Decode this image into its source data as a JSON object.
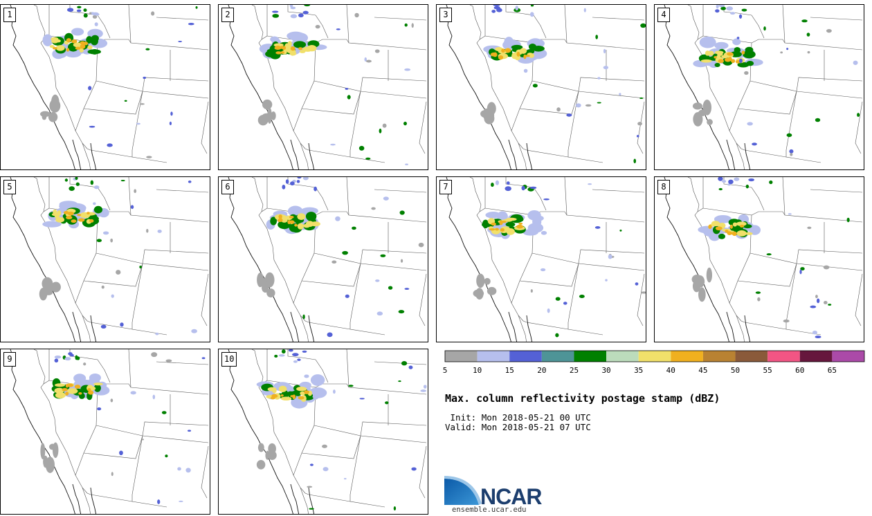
{
  "title": "Max. column reflectivity postage stamp (dBZ)",
  "init_label": " Init:",
  "init_value": "Mon 2018-05-21 00 UTC",
  "valid_label": "Valid:",
  "valid_value": "Mon 2018-05-21 07 UTC",
  "organization": "NCAR",
  "website": "ensemble.ucar.edu",
  "members": [
    "1",
    "2",
    "3",
    "4",
    "5",
    "6",
    "7",
    "8",
    "9",
    "10"
  ],
  "colorbar": {
    "unit": "dBZ",
    "boundaries": [
      5,
      10,
      15,
      20,
      25,
      30,
      35,
      40,
      45,
      50,
      55,
      60,
      65,
      70
    ],
    "tick_labels": [
      "5",
      "10",
      "15",
      "20",
      "25",
      "30",
      "35",
      "40",
      "45",
      "50",
      "55",
      "60",
      "65"
    ],
    "colors": [
      "#a6a6a6",
      "#b6bfed",
      "#5461d6",
      "#4e9497",
      "#008000",
      "#bcdcbc",
      "#f1e06a",
      "#f0b01f",
      "#b98232",
      "#8a5a3a",
      "#f25584",
      "#66173d",
      "#ab4aa8"
    ]
  },
  "map_region": "Western United States",
  "colors": {
    "logo_blue": "#1f6fb4",
    "logo_text": "#1c3e6e"
  }
}
